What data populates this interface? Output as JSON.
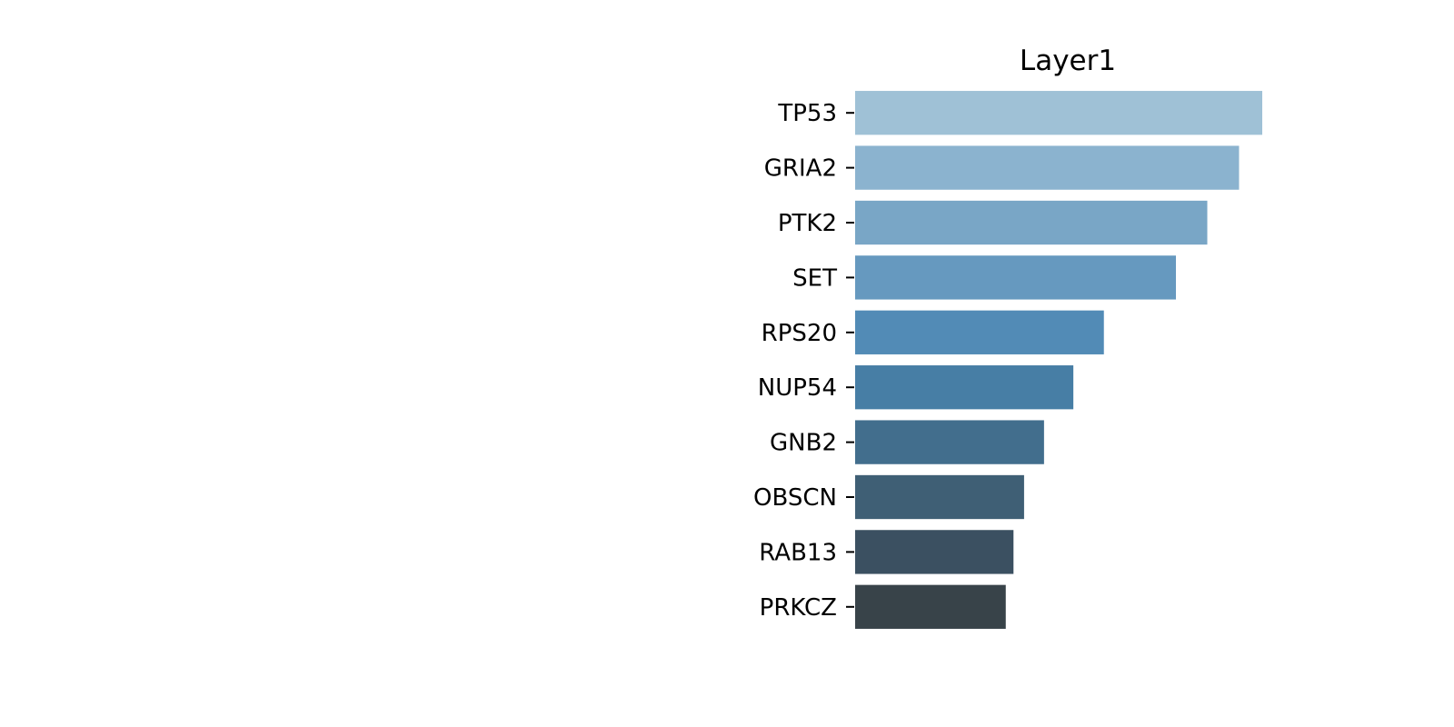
{
  "chart_data": {
    "type": "bar",
    "orientation": "horizontal",
    "title": "Layer1",
    "xlabel": "",
    "ylabel": "",
    "categories": [
      "TP53",
      "GRIA2",
      "PTK2",
      "SET",
      "RPS20",
      "NUP54",
      "GNB2",
      "OBSCN",
      "RAB13",
      "PRKCZ"
    ],
    "values": [
      1.0,
      0.943,
      0.865,
      0.788,
      0.611,
      0.536,
      0.464,
      0.415,
      0.389,
      0.37
    ],
    "xlim": [
      0,
      1.0
    ],
    "grid": false,
    "legend": "none",
    "x_axis_visible": false,
    "colors": [
      "#9fc1d6",
      "#8bb3cf",
      "#79a6c6",
      "#6699bf",
      "#528bb6",
      "#477ea5",
      "#426e8d",
      "#3f5f75",
      "#3b5061",
      "#384349"
    ]
  }
}
